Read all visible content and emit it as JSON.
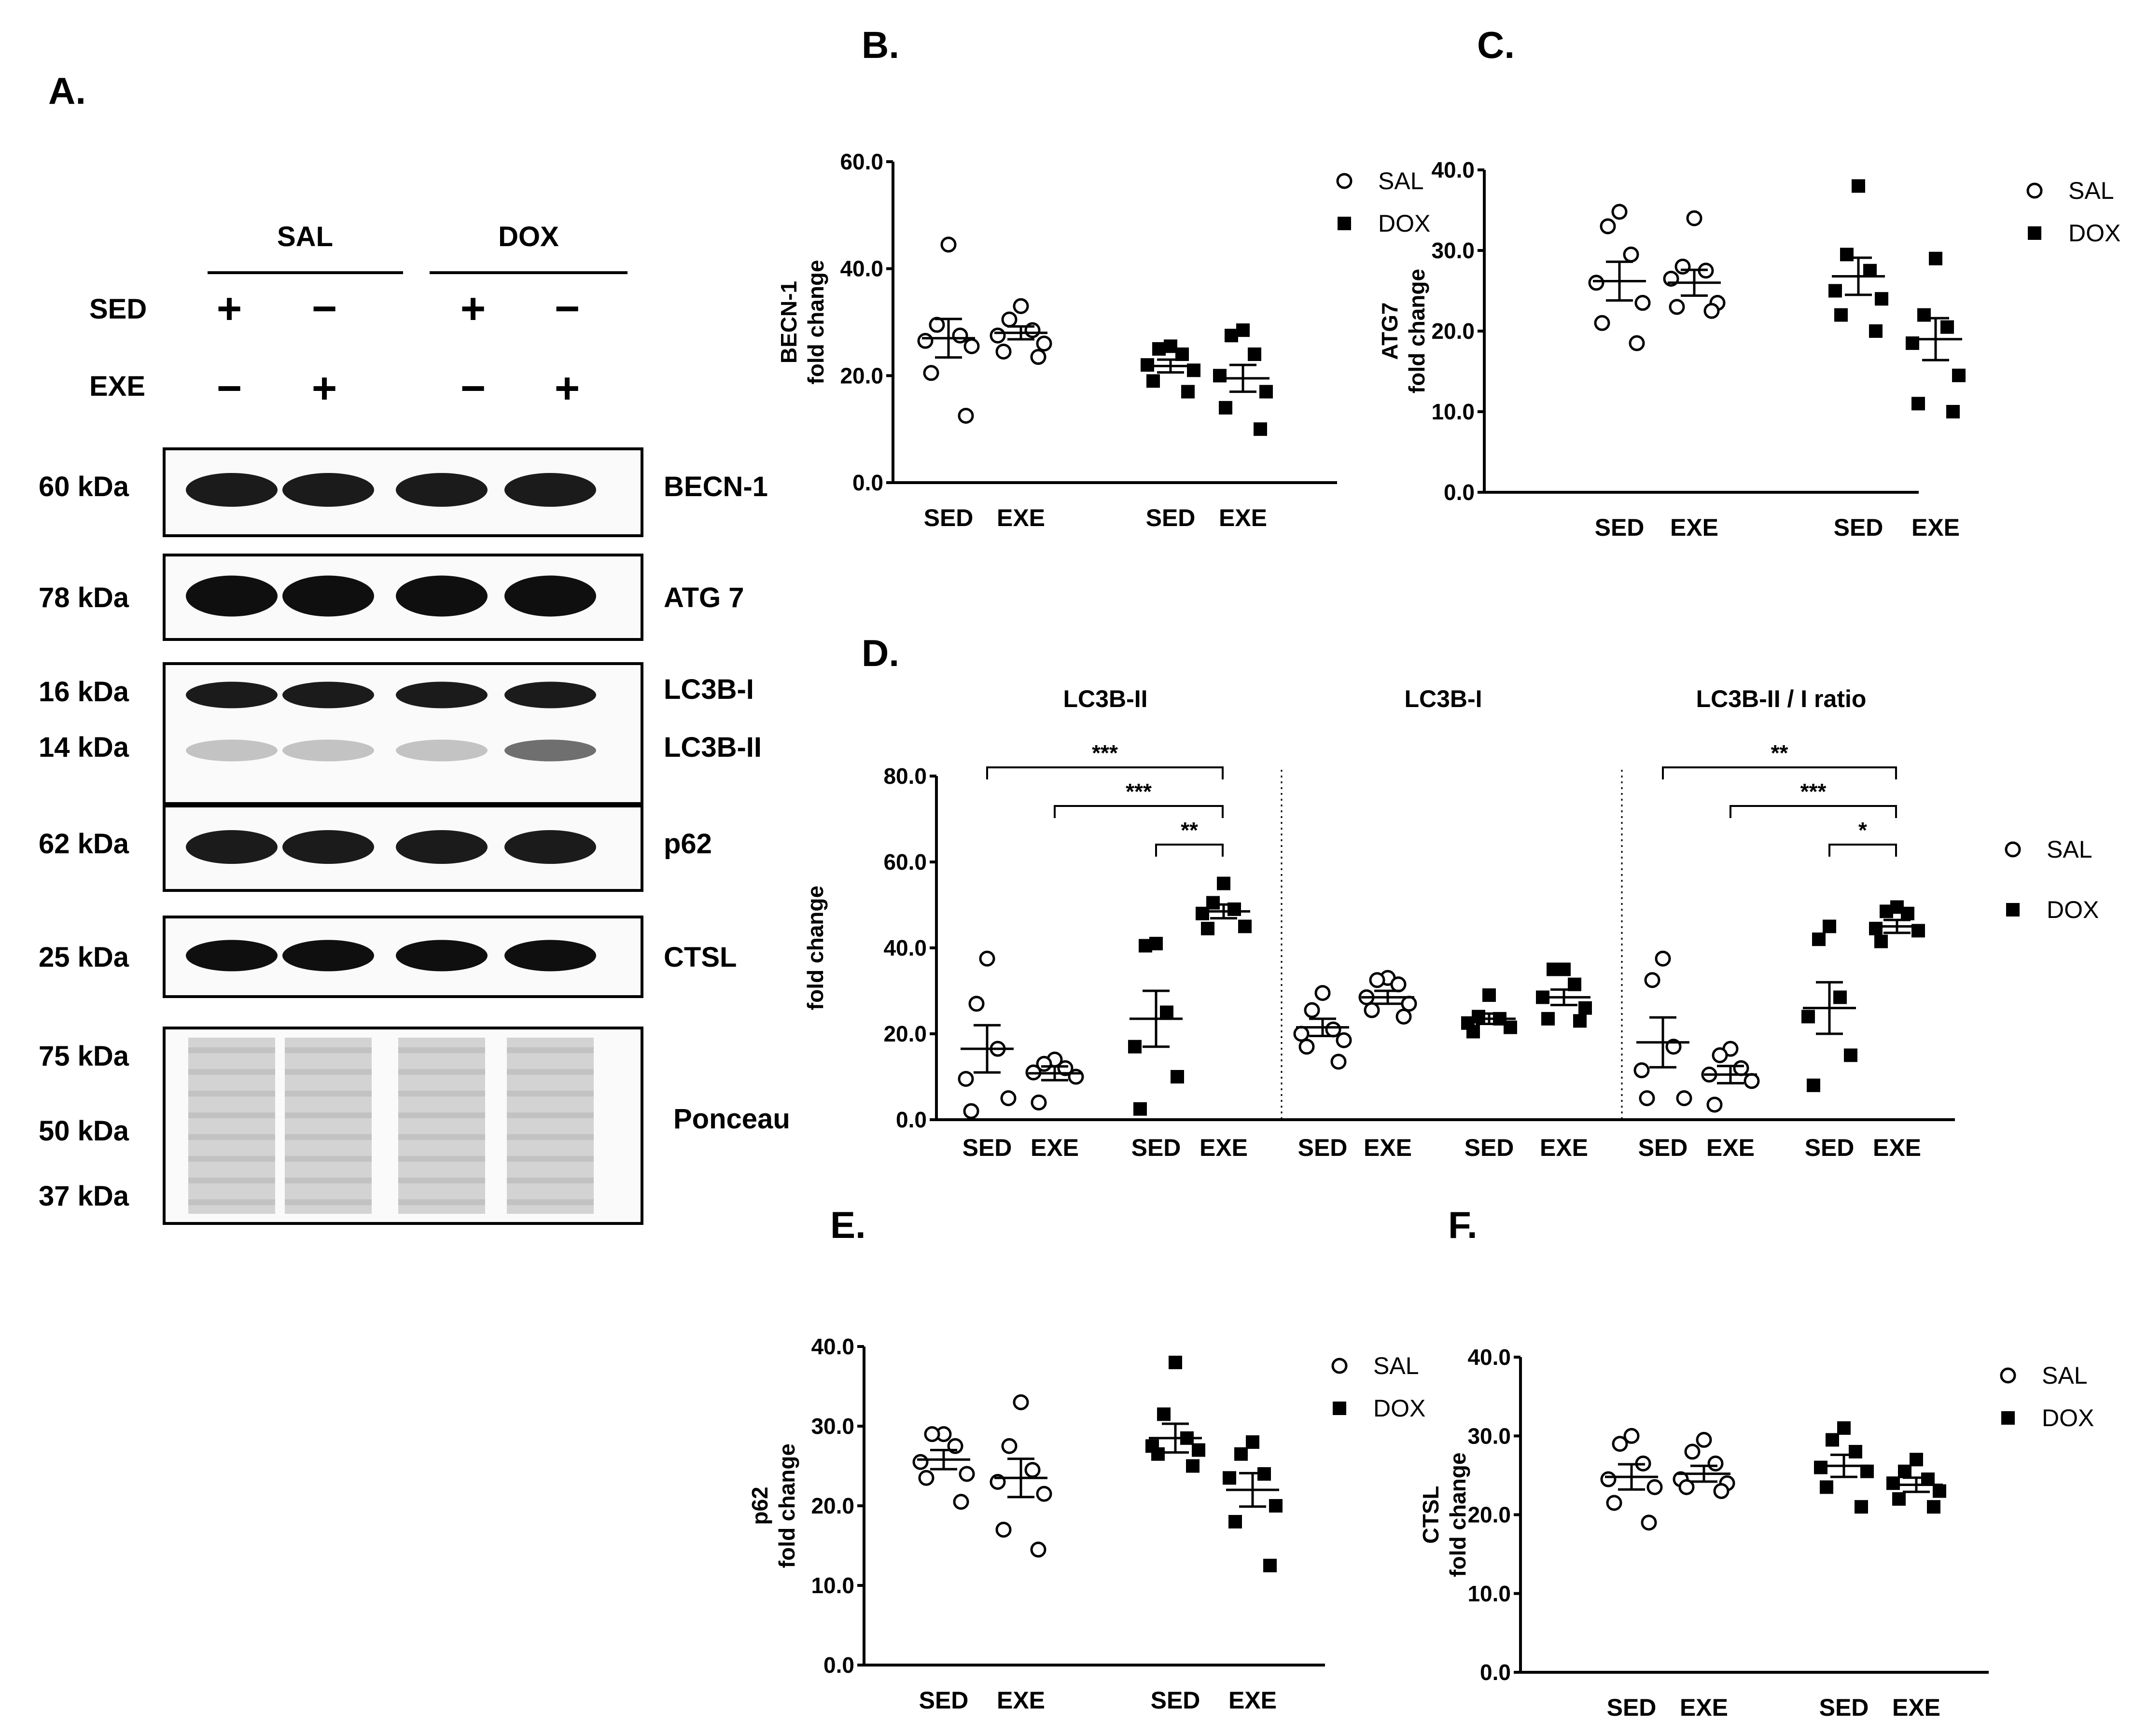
{
  "panel_a": {
    "letter": "A.",
    "header": {
      "sal": "SAL",
      "dox": "DOX",
      "sed": "SED",
      "exe": "EXE",
      "sed_signs": [
        "+",
        "−",
        "+",
        "−"
      ],
      "exe_signs": [
        "−",
        "+",
        "−",
        "+"
      ]
    },
    "blots": [
      {
        "kda": [
          "60 kDa"
        ],
        "labels": [
          "BECN-1"
        ]
      },
      {
        "kda": [
          "78 kDa"
        ],
        "labels": [
          "ATG 7"
        ]
      },
      {
        "kda": [
          "16 kDa",
          "14 kDa"
        ],
        "labels": [
          "LC3B-I",
          "LC3B-II"
        ]
      },
      {
        "kda": [
          "62 kDa"
        ],
        "labels": [
          "p62"
        ]
      },
      {
        "kda": [
          "25 kDa"
        ],
        "labels": [
          "CTSL"
        ]
      },
      {
        "kda": [
          "75 kDa",
          "50 kDa",
          "37 kDa"
        ],
        "labels": [
          "Ponceau"
        ]
      }
    ]
  },
  "legend": {
    "sal": "SAL",
    "dox": "DOX"
  },
  "group_labels": [
    "SED",
    "EXE",
    "SED",
    "EXE"
  ],
  "chart_data": [
    {
      "panel": "B.",
      "type": "scatter",
      "ylabel": [
        "BECN-1",
        "fold change"
      ],
      "ylim": [
        0,
        60
      ],
      "yticks": [
        "0.0",
        "20.0",
        "40.0",
        "60.0"
      ],
      "categories": [
        "SED",
        "EXE",
        "SED",
        "EXE"
      ],
      "series": [
        {
          "name": "SAL",
          "groups": [
            {
              "points": [
                44.5,
                29.5,
                27.5,
                26.5,
                25.5,
                20.5,
                12.5
              ],
              "mean": 27.0,
              "sem": 3.6
            },
            {
              "points": [
                33.0,
                30.5,
                28.5,
                27.5,
                26.0,
                24.5,
                23.5
              ],
              "mean": 28.0,
              "sem": 1.2
            }
          ]
        },
        {
          "name": "DOX",
          "groups": [
            {
              "points": [
                25.5,
                25.0,
                24.0,
                22.0,
                21.0,
                19.0,
                17.0
              ],
              "mean": 21.8,
              "sem": 1.2
            },
            {
              "points": [
                28.5,
                27.5,
                24.0,
                20.0,
                17.0,
                14.0,
                10.0
              ],
              "mean": 19.5,
              "sem": 2.5
            }
          ]
        }
      ]
    },
    {
      "panel": "C.",
      "type": "scatter",
      "ylabel": [
        "ATG7",
        "fold change"
      ],
      "ylim": [
        0,
        40
      ],
      "yticks": [
        "0.0",
        "10.0",
        "20.0",
        "30.0",
        "40.0"
      ],
      "categories": [
        "SED",
        "EXE",
        "SED",
        "EXE"
      ],
      "series": [
        {
          "name": "SAL",
          "groups": [
            {
              "points": [
                34.8,
                33.0,
                29.5,
                26.0,
                23.5,
                21.0,
                18.5
              ],
              "mean": 26.2,
              "sem": 2.4
            },
            {
              "points": [
                34.0,
                28.0,
                27.5,
                26.5,
                23.5,
                23.0,
                22.5
              ],
              "mean": 26.0,
              "sem": 1.6
            }
          ]
        },
        {
          "name": "DOX",
          "groups": [
            {
              "points": [
                38.0,
                29.5,
                27.5,
                25.0,
                24.0,
                22.0,
                20.0
              ],
              "mean": 26.8,
              "sem": 2.3
            },
            {
              "points": [
                29.0,
                22.0,
                20.5,
                18.5,
                14.5,
                11.0,
                10.0
              ],
              "mean": 19.0,
              "sem": 2.6
            }
          ]
        }
      ]
    },
    {
      "panel": "D.",
      "type": "scatter",
      "ylabel": [
        "fold change"
      ],
      "ylim": [
        0,
        80
      ],
      "yticks": [
        "0.0",
        "20.0",
        "40.0",
        "60.0",
        "80.0"
      ],
      "subpanels": [
        {
          "title": "LC3B-II",
          "series": [
            {
              "name": "SAL",
              "groups": [
                {
                  "points": [
                    37.5,
                    27.0,
                    16.5,
                    9.5,
                    5.0,
                    2.0
                  ],
                  "mean": 16.5,
                  "sem": 5.5
                },
                {
                  "points": [
                    14.0,
                    13.0,
                    12.0,
                    11.0,
                    10.0,
                    4.0
                  ],
                  "mean": 10.8,
                  "sem": 1.6
                }
              ]
            },
            {
              "name": "DOX",
              "groups": [
                {
                  "points": [
                    41.0,
                    40.5,
                    25.0,
                    17.0,
                    10.0,
                    2.5
                  ],
                  "mean": 23.5,
                  "sem": 6.5
                },
                {
                  "points": [
                    55.0,
                    50.5,
                    49.0,
                    48.0,
                    45.0,
                    44.5
                  ],
                  "mean": 48.5,
                  "sem": 1.6
                }
              ]
            }
          ],
          "significance": [
            {
              "label": "***",
              "from": 0,
              "to": 3
            },
            {
              "label": "***",
              "from": 1,
              "to": 3
            },
            {
              "label": "**",
              "from": 2,
              "to": 3
            }
          ]
        },
        {
          "title": "LC3B-I",
          "series": [
            {
              "name": "SAL",
              "groups": [
                {
                  "points": [
                    29.5,
                    25.5,
                    21.0,
                    20.0,
                    18.5,
                    17.0,
                    13.5
                  ],
                  "mean": 21.5,
                  "sem": 2.0
                },
                {
                  "points": [
                    33.0,
                    32.5,
                    31.5,
                    28.5,
                    27.0,
                    25.5,
                    24.0
                  ],
                  "mean": 28.5,
                  "sem": 1.5
                }
              ]
            },
            {
              "name": "DOX",
              "groups": [
                {
                  "points": [
                    29.0,
                    24.0,
                    23.5,
                    22.5,
                    21.5,
                    20.5
                  ],
                  "mean": 23.5,
                  "sem": 1.2
                },
                {
                  "points": [
                    35.0,
                    35.0,
                    31.5,
                    28.5,
                    26.0,
                    23.5,
                    23.0
                  ],
                  "mean": 28.5,
                  "sem": 1.8
                }
              ]
            }
          ]
        },
        {
          "title": "LC3B-II / I ratio",
          "series": [
            {
              "name": "SAL",
              "groups": [
                {
                  "points": [
                    37.5,
                    32.5,
                    17.0,
                    11.5,
                    5.0,
                    5.0
                  ],
                  "mean": 18.0,
                  "sem": 5.8
                },
                {
                  "points": [
                    16.5,
                    15.0,
                    12.0,
                    10.5,
                    9.0,
                    3.5
                  ],
                  "mean": 10.5,
                  "sem": 2.0
                }
              ]
            },
            {
              "name": "DOX",
              "groups": [
                {
                  "points": [
                    45.0,
                    42.0,
                    28.5,
                    24.0,
                    15.0,
                    8.0
                  ],
                  "mean": 26.0,
                  "sem": 6.0
                },
                {
                  "points": [
                    49.5,
                    48.5,
                    48.0,
                    44.5,
                    44.0,
                    41.5
                  ],
                  "mean": 45.0,
                  "sem": 1.5
                }
              ]
            }
          ],
          "significance": [
            {
              "label": "**",
              "from": 0,
              "to": 3
            },
            {
              "label": "***",
              "from": 1,
              "to": 3
            },
            {
              "label": "*",
              "from": 2,
              "to": 3
            }
          ]
        }
      ]
    },
    {
      "panel": "E.",
      "type": "scatter",
      "ylabel": [
        "p62",
        "fold change"
      ],
      "ylim": [
        0,
        40
      ],
      "yticks": [
        "0.0",
        "10.0",
        "20.0",
        "30.0",
        "40.0"
      ],
      "categories": [
        "SED",
        "EXE",
        "SED",
        "EXE"
      ],
      "series": [
        {
          "name": "SAL",
          "groups": [
            {
              "points": [
                29.0,
                29.0,
                27.5,
                25.5,
                24.0,
                23.5,
                20.5
              ],
              "mean": 25.8,
              "sem": 1.2
            },
            {
              "points": [
                33.0,
                27.5,
                24.5,
                23.0,
                21.5,
                17.0,
                14.5
              ],
              "mean": 23.5,
              "sem": 2.4
            }
          ]
        },
        {
          "name": "DOX",
          "groups": [
            {
              "points": [
                38.0,
                31.5,
                28.5,
                27.5,
                27.0,
                26.5,
                25.0
              ],
              "mean": 28.5,
              "sem": 1.8
            },
            {
              "points": [
                28.0,
                26.5,
                24.0,
                23.5,
                20.0,
                18.0,
                12.5
              ],
              "mean": 22.0,
              "sem": 2.1
            }
          ]
        }
      ]
    },
    {
      "panel": "F.",
      "type": "scatter",
      "ylabel": [
        "CTSL",
        "fold change"
      ],
      "ylim": [
        0,
        40
      ],
      "yticks": [
        "0.0",
        "10.0",
        "20.0",
        "30.0",
        "40.0"
      ],
      "categories": [
        "SED",
        "EXE",
        "SED",
        "EXE"
      ],
      "series": [
        {
          "name": "SAL",
          "groups": [
            {
              "points": [
                30.0,
                29.0,
                26.5,
                24.5,
                23.5,
                21.5,
                19.0
              ],
              "mean": 24.8,
              "sem": 1.6
            },
            {
              "points": [
                29.5,
                28.0,
                26.5,
                24.5,
                24.0,
                23.5,
                23.0
              ],
              "mean": 25.2,
              "sem": 1.0
            }
          ]
        },
        {
          "name": "DOX",
          "groups": [
            {
              "points": [
                31.0,
                29.5,
                28.0,
                26.0,
                25.5,
                23.5,
                21.0
              ],
              "mean": 26.2,
              "sem": 1.4
            },
            {
              "points": [
                27.0,
                25.5,
                24.5,
                24.0,
                23.0,
                22.0,
                21.0
              ],
              "mean": 23.8,
              "sem": 0.9
            }
          ]
        }
      ]
    }
  ]
}
